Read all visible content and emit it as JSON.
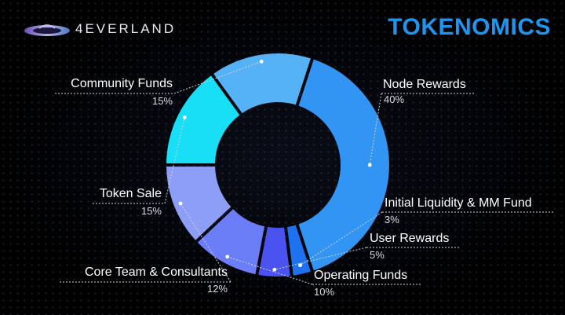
{
  "header": {
    "brand": "4EVERLAND",
    "title": "TOKENOMICS"
  },
  "colors": {
    "title": "#1f96ee",
    "background": "#000000"
  },
  "chart_data": {
    "type": "pie",
    "donut": true,
    "title": "TOKENOMICS",
    "slices": [
      {
        "label": "Node Rewards",
        "value": 40,
        "display": "40%",
        "color": "#3395f3"
      },
      {
        "label": "Initial Liquidity & MM Fund",
        "value": 3,
        "display": "3%",
        "color": "#1f72ef"
      },
      {
        "label": "User Rewards",
        "value": 5,
        "display": "5%",
        "color": "#4a52f0"
      },
      {
        "label": "Operating Funds",
        "value": 10,
        "display": "10%",
        "color": "#6c7ef7"
      },
      {
        "label": "Core Team & Consultants",
        "value": 12,
        "display": "12%",
        "color": "#8d9ef6"
      },
      {
        "label": "Token Sale",
        "value": 15,
        "display": "15%",
        "color": "#19dff6"
      },
      {
        "label": "Community Funds",
        "value": 15,
        "display": "15%",
        "color": "#56b2f7"
      }
    ]
  }
}
